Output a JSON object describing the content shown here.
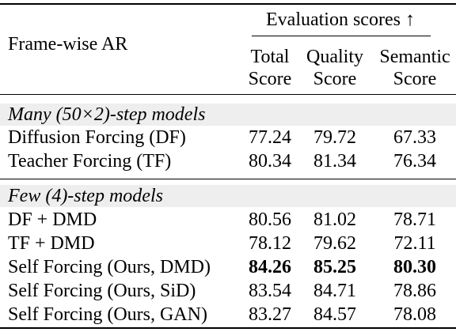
{
  "table": {
    "row_header_title": "Frame-wise AR",
    "group_header": "Evaluation scores ↑",
    "columns": [
      {
        "line1": "Total",
        "line2": "Score"
      },
      {
        "line1": "Quality",
        "line2": "Score"
      },
      {
        "line1": "Semantic",
        "line2": "Score"
      }
    ],
    "sections": [
      {
        "title": "Many (50×2)-step models",
        "rows": [
          {
            "label": "Diffusion Forcing (DF)",
            "total": "77.24",
            "quality": "79.72",
            "semantic": "67.33"
          },
          {
            "label": "Teacher Forcing (TF)",
            "total": "80.34",
            "quality": "81.34",
            "semantic": "76.34"
          }
        ]
      },
      {
        "title": "Few (4)-step models",
        "rows": [
          {
            "label": "DF + DMD",
            "total": "80.56",
            "quality": "81.02",
            "semantic": "78.71"
          },
          {
            "label": "TF + DMD",
            "total": "78.12",
            "quality": "79.62",
            "semantic": "72.11"
          },
          {
            "label": "Self Forcing (Ours, DMD)",
            "total": "84.26",
            "quality": "85.25",
            "semantic": "80.30",
            "bold": true
          },
          {
            "label": "Self Forcing (Ours, SiD)",
            "total": "83.54",
            "quality": "84.71",
            "semantic": "78.86"
          },
          {
            "label": "Self Forcing (Ours, GAN)",
            "total": "83.27",
            "quality": "84.57",
            "semantic": "78.08"
          }
        ]
      }
    ]
  }
}
